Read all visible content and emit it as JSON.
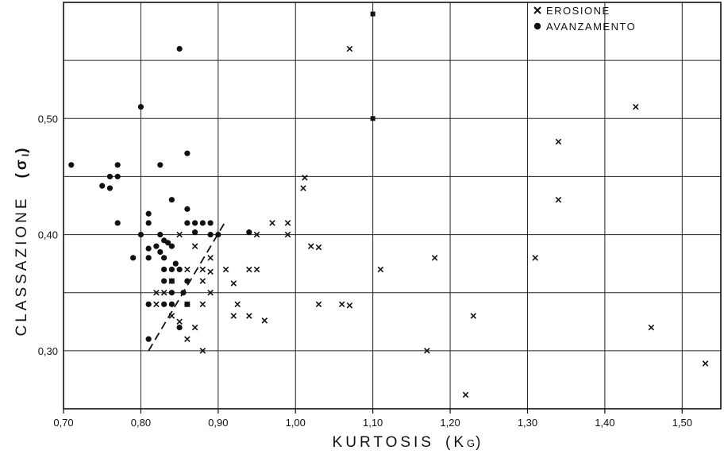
{
  "chart_data": {
    "type": "scatter",
    "title": "",
    "xlabel": "KURTOSIS",
    "xlabel_symbol": "(K",
    "xlabel_symbol_sub": "G",
    "xlabel_symbol_close": ")",
    "ylabel": "CLASSAZIONE",
    "ylabel_symbol": "(σ",
    "ylabel_symbol_sub": "I",
    "ylabel_symbol_close": ")",
    "xlim": [
      0.7,
      1.55
    ],
    "ylim": [
      0.25,
      0.6
    ],
    "x_ticks": [
      0.7,
      0.8,
      0.9,
      1.0,
      1.1,
      1.2,
      1.3,
      1.4,
      1.5
    ],
    "x_tick_labels": [
      "0,70",
      "0,80",
      "0,90",
      "1,00",
      "1,10",
      "1,20",
      "1,30",
      "1,40",
      "1,50"
    ],
    "y_ticks": [
      0.3,
      0.4,
      0.5
    ],
    "y_tick_labels": [
      "0,30",
      "0,40",
      "0,50"
    ],
    "grid": true,
    "legend_position": "top-right",
    "series": [
      {
        "name": "EROSIONE",
        "marker": "x",
        "points": [
          [
            1.07,
            0.56
          ],
          [
            1.44,
            0.51
          ],
          [
            1.34,
            0.48
          ],
          [
            1.34,
            0.43
          ],
          [
            1.01,
            0.44
          ],
          [
            1.012,
            0.449
          ],
          [
            0.97,
            0.41
          ],
          [
            0.99,
            0.41
          ],
          [
            0.99,
            0.4
          ],
          [
            0.95,
            0.4
          ],
          [
            1.02,
            0.39
          ],
          [
            1.03,
            0.389
          ],
          [
            1.11,
            0.37
          ],
          [
            1.18,
            0.38
          ],
          [
            1.31,
            0.38
          ],
          [
            0.91,
            0.37
          ],
          [
            0.94,
            0.37
          ],
          [
            0.95,
            0.37
          ],
          [
            0.92,
            0.358
          ],
          [
            0.925,
            0.34
          ],
          [
            0.92,
            0.33
          ],
          [
            0.94,
            0.33
          ],
          [
            0.96,
            0.326
          ],
          [
            1.03,
            0.34
          ],
          [
            1.06,
            0.34
          ],
          [
            1.07,
            0.339
          ],
          [
            1.17,
            0.3
          ],
          [
            1.23,
            0.33
          ],
          [
            1.22,
            0.262
          ],
          [
            1.46,
            0.32
          ],
          [
            1.53,
            0.289
          ],
          [
            0.85,
            0.4
          ],
          [
            0.87,
            0.39
          ],
          [
            0.89,
            0.38
          ],
          [
            0.88,
            0.37
          ],
          [
            0.89,
            0.368
          ],
          [
            0.86,
            0.37
          ],
          [
            0.88,
            0.36
          ],
          [
            0.89,
            0.35
          ],
          [
            0.88,
            0.34
          ],
          [
            0.86,
            0.34
          ],
          [
            0.87,
            0.32
          ],
          [
            0.85,
            0.325
          ],
          [
            0.86,
            0.31
          ],
          [
            0.88,
            0.3
          ],
          [
            0.84,
            0.36
          ],
          [
            0.83,
            0.35
          ],
          [
            0.82,
            0.35
          ],
          [
            0.82,
            0.34
          ],
          [
            0.84,
            0.33
          ]
        ]
      },
      {
        "name": "AVANZAMENTO",
        "marker": "circle",
        "points": [
          [
            0.85,
            0.56
          ],
          [
            0.8,
            0.51
          ],
          [
            0.86,
            0.47
          ],
          [
            0.71,
            0.46
          ],
          [
            0.77,
            0.46
          ],
          [
            0.825,
            0.46
          ],
          [
            0.76,
            0.45
          ],
          [
            0.77,
            0.45
          ],
          [
            0.75,
            0.442
          ],
          [
            0.76,
            0.44
          ],
          [
            0.84,
            0.43
          ],
          [
            0.86,
            0.422
          ],
          [
            0.81,
            0.418
          ],
          [
            0.81,
            0.41
          ],
          [
            0.77,
            0.41
          ],
          [
            0.86,
            0.41
          ],
          [
            0.87,
            0.41
          ],
          [
            0.88,
            0.41
          ],
          [
            0.89,
            0.41
          ],
          [
            0.8,
            0.4
          ],
          [
            0.825,
            0.4
          ],
          [
            0.87,
            0.402
          ],
          [
            0.89,
            0.4
          ],
          [
            0.9,
            0.4
          ],
          [
            0.94,
            0.402
          ],
          [
            0.83,
            0.395
          ],
          [
            0.835,
            0.393
          ],
          [
            0.84,
            0.39
          ],
          [
            0.82,
            0.39
          ],
          [
            0.81,
            0.388
          ],
          [
            0.79,
            0.38
          ],
          [
            0.81,
            0.38
          ],
          [
            0.825,
            0.385
          ],
          [
            0.83,
            0.38
          ],
          [
            0.845,
            0.375
          ],
          [
            0.83,
            0.37
          ],
          [
            0.84,
            0.37
          ],
          [
            0.85,
            0.37
          ],
          [
            0.83,
            0.36
          ],
          [
            0.84,
            0.36
          ],
          [
            0.86,
            0.36
          ],
          [
            0.84,
            0.35
          ],
          [
            0.855,
            0.35
          ],
          [
            0.81,
            0.34
          ],
          [
            0.83,
            0.34
          ],
          [
            0.84,
            0.34
          ],
          [
            0.86,
            0.34
          ],
          [
            0.85,
            0.32
          ],
          [
            0.81,
            0.31
          ]
        ]
      }
    ],
    "trend_line": {
      "style": "dashed",
      "from": [
        0.81,
        0.3
      ],
      "to": [
        0.91,
        0.412
      ]
    },
    "annotations": [
      {
        "shape": "filled-square",
        "x": 1.1,
        "y": 0.5
      },
      {
        "shape": "filled-square",
        "x": 1.1,
        "y": 0.59
      }
    ]
  }
}
